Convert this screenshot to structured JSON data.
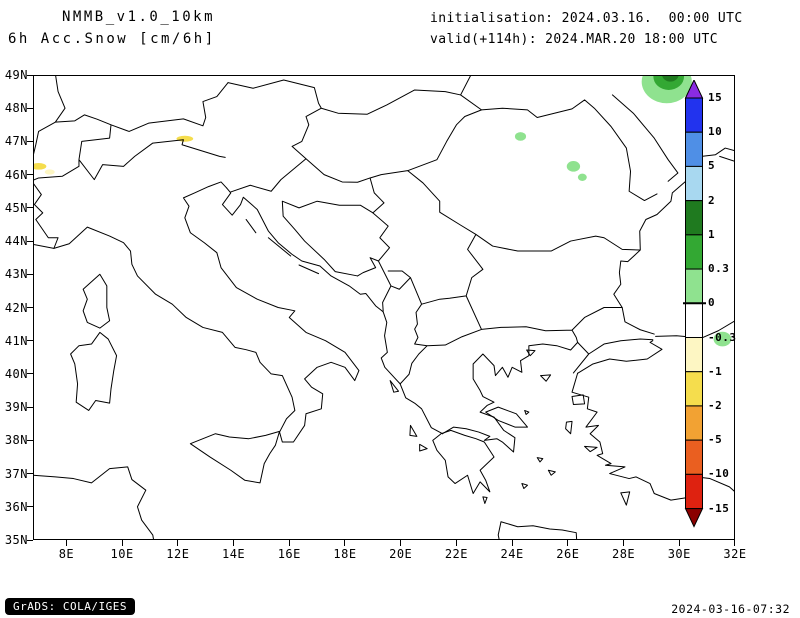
{
  "header": {
    "model": "NMMB_v1.0_10km",
    "product": "6h Acc.Snow [cm/6h]",
    "init_line": "initialisation: 2024.03.16.  00:00 UTC",
    "valid_line": "valid(+114h): 2024.MAR.20 18:00 UTC"
  },
  "footer": {
    "grads": "GrADS: COLA/IGES",
    "timestamp": "2024-03-16-07:32"
  },
  "axes": {
    "x_ticks": [
      "8E",
      "10E",
      "12E",
      "14E",
      "16E",
      "18E",
      "20E",
      "22E",
      "24E",
      "26E",
      "28E",
      "30E",
      "32E"
    ],
    "y_ticks": [
      "35N",
      "36N",
      "37N",
      "38N",
      "39N",
      "40N",
      "41N",
      "42N",
      "43N",
      "44N",
      "45N",
      "46N",
      "47N",
      "48N",
      "49N"
    ]
  },
  "map": {
    "extent": {
      "lon_min": 6.8,
      "lon_max": 32.0,
      "lat_min": 35.0,
      "lat_max": 49.0
    },
    "snow_patches": [
      {
        "lon": 29.55,
        "lat": 48.8,
        "rx": 0.9,
        "ry": 0.65,
        "level": "0.3 to 1",
        "color": "#8fe28f"
      },
      {
        "lon": 29.62,
        "lat": 48.95,
        "rx": 0.55,
        "ry": 0.4,
        "level": "1 to 2",
        "color": "#33a833"
      },
      {
        "lon": 29.68,
        "lat": 49.02,
        "rx": 0.3,
        "ry": 0.22,
        "level": "2 to 5",
        "color": "#1f7a1f"
      },
      {
        "lon": 24.3,
        "lat": 47.15,
        "rx": 0.2,
        "ry": 0.13,
        "level": "0.3 to 1",
        "color": "#8fe28f"
      },
      {
        "lon": 26.2,
        "lat": 46.25,
        "rx": 0.24,
        "ry": 0.16,
        "level": "0.3 to 1",
        "color": "#8fe28f"
      },
      {
        "lon": 26.52,
        "lat": 45.92,
        "rx": 0.16,
        "ry": 0.11,
        "level": "0.3 to 1",
        "color": "#8fe28f"
      },
      {
        "lon": 31.55,
        "lat": 41.05,
        "rx": 0.32,
        "ry": 0.22,
        "level": "0.3 to 1",
        "color": "#8fe28f"
      },
      {
        "lon": 7.0,
        "lat": 46.25,
        "rx": 0.28,
        "ry": 0.1,
        "level": "-1 to -2",
        "color": "#f5dd4d"
      },
      {
        "lon": 7.4,
        "lat": 46.08,
        "rx": 0.18,
        "ry": 0.08,
        "level": "-0.3 to -1",
        "color": "#fdf6c3"
      },
      {
        "lon": 12.25,
        "lat": 47.08,
        "rx": 0.3,
        "ry": 0.09,
        "level": "-1 to -2",
        "color": "#f5dd4d"
      }
    ]
  },
  "colorbar": {
    "labels": [
      "15",
      "10",
      "5",
      "2",
      "1",
      "0.3",
      "0",
      "-0.3",
      "-1",
      "-2",
      "-5",
      "-10",
      "-15"
    ],
    "arrow_top_color": "#8a2be2",
    "arrow_bottom_color": "#8b0000",
    "segment_colors": [
      "#2233ee",
      "#4f8fe6",
      "#a8d8f0",
      "#1f7a1f",
      "#33a833",
      "#8fe28f",
      "#ffffff",
      "#fdf6c3",
      "#f5dd4d",
      "#f2a233",
      "#ea5f20",
      "#de2210"
    ]
  }
}
